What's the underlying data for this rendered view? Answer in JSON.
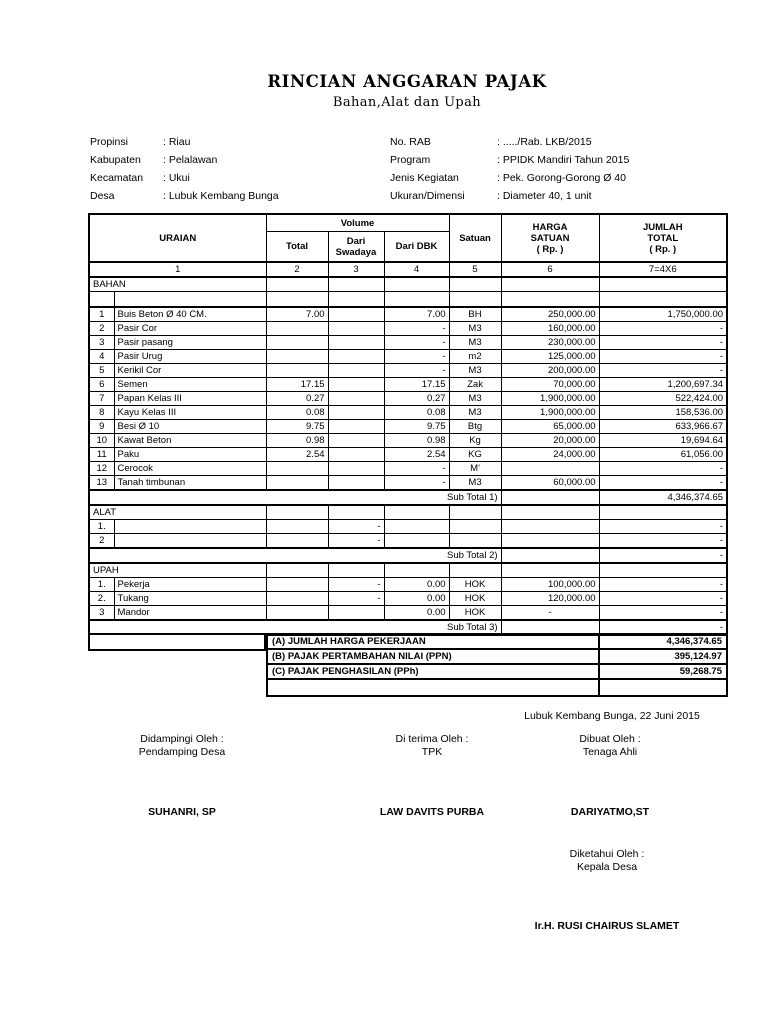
{
  "title": "RINCIAN ANGGARAN PAJAK",
  "subtitle": "Bahan,Alat dan Upah",
  "info_left": [
    {
      "label": "Propinsi",
      "value": ": Riau"
    },
    {
      "label": "Kabupaten",
      "value": ": Pelalawan"
    },
    {
      "label": "Kecamatan",
      "value": ": Ukui"
    },
    {
      "label": "Desa",
      "value": ": Lubuk Kembang Bunga"
    }
  ],
  "info_right": [
    {
      "label": "No. RAB",
      "value": ": ...../Rab. LKB/2015"
    },
    {
      "label": "Program",
      "value": ": PPIDK Mandiri Tahun 2015"
    },
    {
      "label": "Jenis Kegiatan",
      "value": ": Pek. Gorong-Gorong Ø 40"
    },
    {
      "label": "Ukuran/Dimensi",
      "value": ": Diameter 40, 1 unit"
    }
  ],
  "table": {
    "headers": {
      "uraian": "URAIAN",
      "volume": "Volume",
      "total": "Total",
      "dari_swadaya": "Dari\nSwadaya",
      "dari_dbk": "Dari DBK",
      "satuan": "Satuan",
      "harga_satuan": "HARGA\nSATUAN\n( Rp. )",
      "jumlah_total": "JUMLAH\nTOTAL\n( Rp. )"
    },
    "col_numbers": [
      "1",
      "2",
      "3",
      "4",
      "5",
      "6",
      "7=4X6"
    ],
    "section_bahan": "BAHAN",
    "section_alat": "ALAT",
    "section_upah": "UPAH",
    "bahan_rows": [
      {
        "no": "1",
        "uraian": "Buis Beton Ø 40 CM.",
        "total": "7.00",
        "swadaya": "",
        "dbk": "7.00",
        "satuan": "BH",
        "harga": "250,000.00",
        "jumlah": "1,750,000.00"
      },
      {
        "no": "2",
        "uraian": "Pasir Cor",
        "total": "",
        "swadaya": "",
        "dbk": "-",
        "satuan": "M3",
        "harga": "160,000.00",
        "jumlah": "-"
      },
      {
        "no": "3",
        "uraian": "Pasir pasang",
        "total": "",
        "swadaya": "",
        "dbk": "-",
        "satuan": "M3",
        "harga": "230,000.00",
        "jumlah": "-"
      },
      {
        "no": "4",
        "uraian": "Pasir Urug",
        "total": "",
        "swadaya": "",
        "dbk": "-",
        "satuan": "m2",
        "harga": "125,000.00",
        "jumlah": "-"
      },
      {
        "no": "5",
        "uraian": "Kerikil Cor",
        "total": "",
        "swadaya": "",
        "dbk": "-",
        "satuan": "M3",
        "harga": "200,000.00",
        "jumlah": "-"
      },
      {
        "no": "6",
        "uraian": "Semen",
        "total": "17.15",
        "swadaya": "",
        "dbk": "17.15",
        "satuan": "Zak",
        "harga": "70,000.00",
        "jumlah": "1,200,697.34"
      },
      {
        "no": "7",
        "uraian": "Papan Kelas III",
        "total": "0.27",
        "swadaya": "",
        "dbk": "0.27",
        "satuan": "M3",
        "harga": "1,900,000.00",
        "jumlah": "522,424.00"
      },
      {
        "no": "8",
        "uraian": "Kayu Kelas III",
        "total": "0.08",
        "swadaya": "",
        "dbk": "0.08",
        "satuan": "M3",
        "harga": "1,900,000.00",
        "jumlah": "158,536.00"
      },
      {
        "no": "9",
        "uraian": "Besi Ø 10",
        "total": "9.75",
        "swadaya": "",
        "dbk": "9.75",
        "satuan": "Btg",
        "harga": "65,000.00",
        "jumlah": "633,966.67"
      },
      {
        "no": "10",
        "uraian": "Kawat Beton",
        "total": "0.98",
        "swadaya": "",
        "dbk": "0.98",
        "satuan": "Kg",
        "harga": "20,000.00",
        "jumlah": "19,694.64"
      },
      {
        "no": "11",
        "uraian": "Paku",
        "total": "2.54",
        "swadaya": "",
        "dbk": "2.54",
        "satuan": "KG",
        "harga": "24,000.00",
        "jumlah": "61,056.00"
      },
      {
        "no": "12",
        "uraian": "Cerocok",
        "total": "",
        "swadaya": "",
        "dbk": "-",
        "satuan": "M'",
        "harga": "",
        "jumlah": "-"
      },
      {
        "no": "13",
        "uraian": "Tanah timbunan",
        "total": "",
        "swadaya": "",
        "dbk": "-",
        "satuan": "M3",
        "harga": "60,000.00",
        "jumlah": "-"
      }
    ],
    "sub_total_1": {
      "label": "Sub Total  1)",
      "value": "4,346,374.65"
    },
    "alat_rows": [
      {
        "no": "1.",
        "uraian": "",
        "total": "",
        "swadaya": "-",
        "dbk": "",
        "satuan": "",
        "harga": "",
        "jumlah": "-"
      },
      {
        "no": "2",
        "uraian": "",
        "total": "",
        "swadaya": "-",
        "dbk": "",
        "satuan": "",
        "harga": "",
        "jumlah": "-"
      }
    ],
    "sub_total_2": {
      "label": "Sub Total  2)",
      "value": "-"
    },
    "upah_rows": [
      {
        "no": "1.",
        "uraian": "Pekerja",
        "total": "",
        "swadaya": "-",
        "dbk": "0.00",
        "satuan": "HOK",
        "harga": "100,000.00",
        "jumlah": "-"
      },
      {
        "no": "2.",
        "uraian": "Tukang",
        "total": "",
        "swadaya": "-",
        "dbk": "0.00",
        "satuan": "HOK",
        "harga": "120,000.00",
        "jumlah": "-"
      },
      {
        "no": "3",
        "uraian": "Mandor",
        "total": "",
        "swadaya": "",
        "dbk": "0.00",
        "satuan": "HOK",
        "harga": "-",
        "jumlah": "-"
      }
    ],
    "sub_total_3": {
      "label": "Sub Total  3)",
      "value": "-"
    },
    "summary": [
      {
        "label": "(A)  JUMLAH HARGA PEKERJAAN",
        "value": "4,346,374.65"
      },
      {
        "label": "(B)  PAJAK PERTAMBAHAN NILAI (PPN)",
        "value": "395,124.97"
      },
      {
        "label": "(C)  PAJAK PENGHASILAN (PPh)",
        "value": "59,268.75"
      }
    ]
  },
  "footer": {
    "place_date": "Lubuk Kembang Bunga, 22 Juni 2015",
    "signatories": [
      {
        "role_line1": "Didampingi  Oleh :",
        "role_line2": "Pendamping Desa",
        "name": "SUHANRI, SP"
      },
      {
        "role_line1": "Di terima  Oleh :",
        "role_line2": "TPK",
        "name": "LAW DAVITS PURBA"
      },
      {
        "role_line1": "Dibuat Oleh :",
        "role_line2": "Tenaga Ahli",
        "name": "DARIYATMO,ST"
      }
    ],
    "acknowledge": {
      "role_line1": "Diketahui  Oleh :",
      "role_line2": "Kepala Desa",
      "name": "Ir.H. RUSI CHAIRUS SLAMET"
    }
  }
}
